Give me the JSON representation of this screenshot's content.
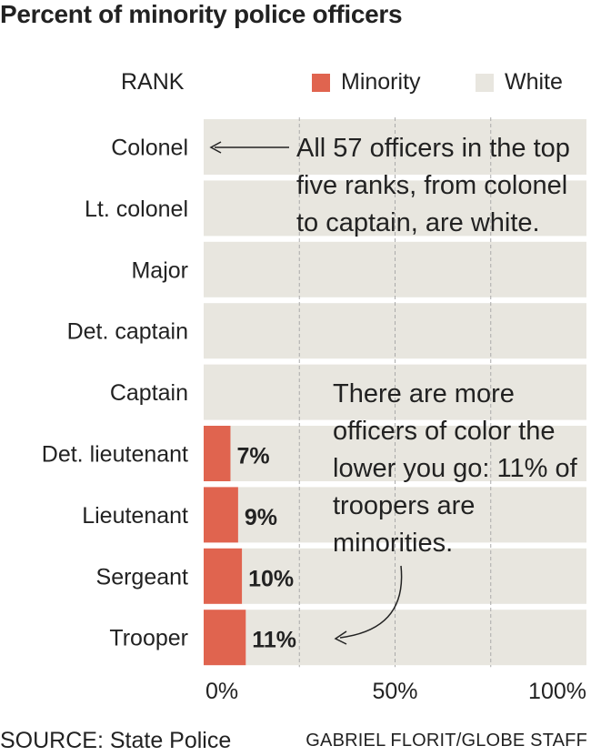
{
  "title": "Percent of minority police officers",
  "rank_header": "RANK",
  "legend": [
    {
      "name": "Minority",
      "color": "#e0644f"
    },
    {
      "name": "White",
      "color": "#e8e6df"
    }
  ],
  "annotations": [
    "All 57 officers in the top five ranks, from colonel to captain, are white.",
    "There are more officers of color the lower you go: 11% of troopers are minorities."
  ],
  "source": "SOURCE: State Police",
  "credit": "GABRIEL FLORIT/GLOBE STAFF",
  "chart_data": {
    "type": "bar",
    "orientation": "horizontal",
    "stacked": true,
    "categories": [
      "Colonel",
      "Lt. colonel",
      "Major",
      "Det. captain",
      "Captain",
      "Det. lieutenant",
      "Lieutenant",
      "Sergeant",
      "Trooper"
    ],
    "series": [
      {
        "name": "Minority",
        "color": "#e0644f",
        "values": [
          0,
          0,
          0,
          0,
          0,
          7,
          9,
          10,
          11
        ]
      },
      {
        "name": "White",
        "color": "#e8e6df",
        "values": [
          100,
          100,
          100,
          100,
          100,
          93,
          91,
          90,
          89
        ]
      }
    ],
    "value_labels": [
      "",
      "",
      "",
      "",
      "",
      "7%",
      "9%",
      "10%",
      "11%"
    ],
    "xlim": [
      0,
      100
    ],
    "xticks": [
      0,
      50,
      100
    ],
    "xtick_labels": [
      "0%",
      "50%",
      "100%"
    ],
    "gridlines": [
      25,
      50,
      75
    ]
  }
}
